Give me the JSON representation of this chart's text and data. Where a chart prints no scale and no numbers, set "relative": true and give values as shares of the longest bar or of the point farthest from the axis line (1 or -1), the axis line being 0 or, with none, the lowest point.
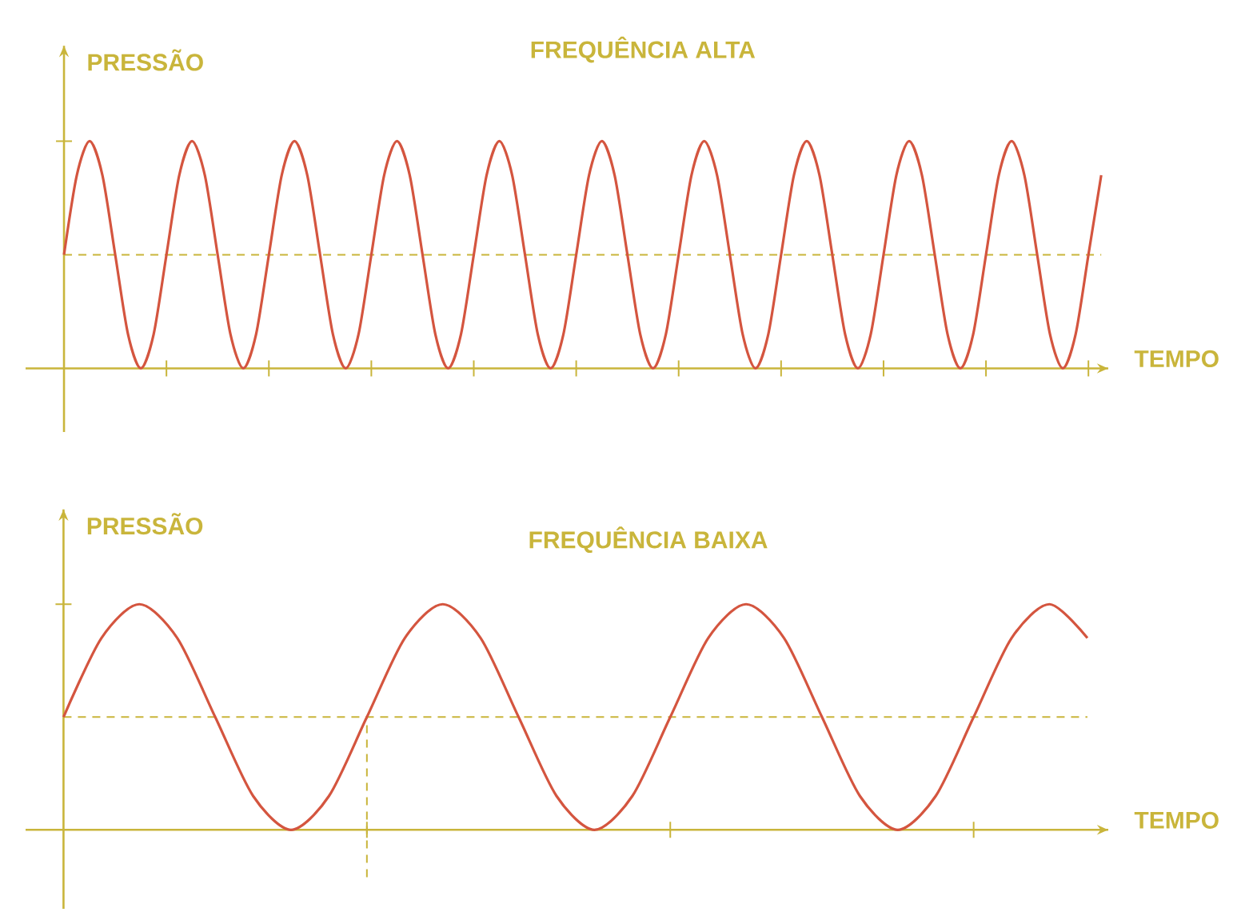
{
  "chart_data": [
    {
      "type": "line",
      "title": "FREQUÊNCIA ALTA",
      "ylabel": "PRESSÃO",
      "xlabel": "TEMPO",
      "relative": true,
      "line_style": "solid",
      "color": "#d4553f",
      "categories": [
        null,
        null,
        null,
        null,
        null,
        null,
        null,
        null,
        null,
        null,
        null,
        null,
        null,
        null,
        null,
        null,
        null,
        null,
        null,
        null,
        null,
        null,
        null,
        null,
        null,
        null,
        null,
        null,
        null,
        null,
        null,
        null,
        null,
        null,
        null,
        null,
        null,
        null,
        null,
        null,
        null,
        null,
        null,
        null,
        null,
        null,
        null,
        null,
        null,
        null,
        null,
        null,
        null,
        null,
        null,
        null,
        null,
        null,
        null,
        null,
        null,
        null,
        null,
        null,
        null,
        null,
        null,
        null,
        null,
        null,
        null,
        null,
        null,
        null,
        null,
        null,
        null,
        null,
        null,
        null,
        null,
        null
      ],
      "values": [
        0.5,
        0.85,
        1,
        0.85,
        0.5,
        0.15,
        0,
        0.15,
        0.5,
        0.85,
        1,
        0.85,
        0.5,
        0.15,
        0,
        0.15,
        0.5,
        0.85,
        1,
        0.85,
        0.5,
        0.15,
        0,
        0.15,
        0.5,
        0.85,
        1,
        0.85,
        0.5,
        0.15,
        0,
        0.15,
        0.5,
        0.85,
        1,
        0.85,
        0.5,
        0.15,
        0,
        0.15,
        0.5,
        0.85,
        1,
        0.85,
        0.5,
        0.15,
        0,
        0.15,
        0.5,
        0.85,
        1,
        0.85,
        0.5,
        0.15,
        0,
        0.15,
        0.5,
        0.85,
        1,
        0.85,
        0.5,
        0.15,
        0,
        0.15,
        0.5,
        0.85,
        1,
        0.85,
        0.5,
        0.15,
        0,
        0.15,
        0.5,
        0.85,
        1,
        0.85,
        0.5,
        0.15,
        0,
        0.15,
        0.5,
        0.85
      ],
      "ref_lines": [
        {
          "axis": "y",
          "value": 0.5,
          "color": "#c9b53b",
          "line_style": "dashed"
        }
      ]
    },
    {
      "type": "line",
      "title": "FREQUÊNCIA BAIXA",
      "ylabel": "PRESSÃO",
      "xlabel": "TEMPO",
      "relative": true,
      "line_style": "solid",
      "color": "#d4553f",
      "categories": [
        null,
        null,
        null,
        null,
        null,
        null,
        null,
        null,
        null,
        null,
        null,
        null,
        null,
        null,
        null,
        null,
        null,
        null,
        null,
        null,
        null,
        null,
        null,
        null,
        null,
        null,
        null,
        null
      ],
      "values": [
        0.5,
        0.85,
        1,
        0.85,
        0.5,
        0.15,
        0,
        0.15,
        0.5,
        0.85,
        1,
        0.85,
        0.5,
        0.15,
        0,
        0.15,
        0.5,
        0.85,
        1,
        0.85,
        0.5,
        0.15,
        0,
        0.15,
        0.5,
        0.85,
        1,
        0.85
      ],
      "ref_lines": [
        {
          "axis": "y",
          "value": 0.5,
          "color": "#c9b53b",
          "line_style": "dashed"
        }
      ]
    }
  ]
}
